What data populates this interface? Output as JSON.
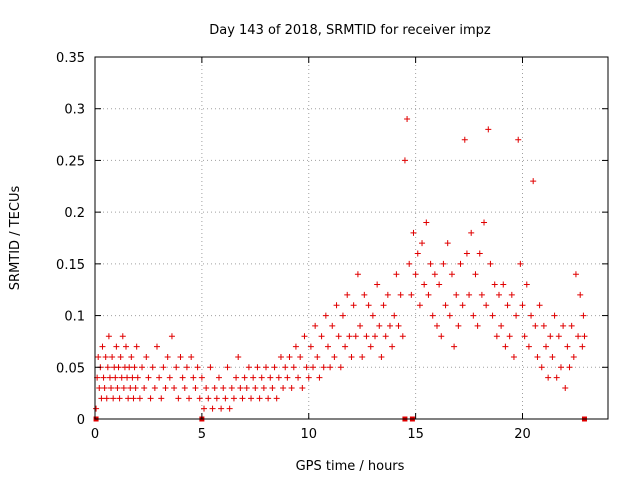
{
  "chart_data": {
    "type": "scatter",
    "title": "Day 143 of 2018, SRMTID for receiver impz",
    "xlabel": "GPS time / hours",
    "ylabel": "SRMTID / TECUs",
    "xlim": [
      0,
      24
    ],
    "ylim": [
      0,
      0.35
    ],
    "xticks": [
      0,
      5,
      10,
      15,
      20
    ],
    "xtick_labels": [
      "0",
      "5",
      "10",
      "15",
      "20"
    ],
    "yticks": [
      0,
      0.05,
      0.1,
      0.15,
      0.2,
      0.25,
      0.3,
      0.35
    ],
    "ytick_labels": [
      "0",
      "0.05",
      "0.1",
      "0.15",
      "0.2",
      "0.25",
      "0.3",
      "0.35"
    ],
    "grid": true,
    "marker": "plus",
    "color": "#e00000",
    "series": [
      {
        "name": "SRMTID",
        "points": [
          [
            0.05,
            0.01
          ],
          [
            0.1,
            0.04
          ],
          [
            0.15,
            0.06
          ],
          [
            0.2,
            0.03
          ],
          [
            0.25,
            0.05
          ],
          [
            0.3,
            0.02
          ],
          [
            0.35,
            0.07
          ],
          [
            0.4,
            0.04
          ],
          [
            0.45,
            0.03
          ],
          [
            0.5,
            0.06
          ],
          [
            0.55,
            0.02
          ],
          [
            0.6,
            0.05
          ],
          [
            0.65,
            0.08
          ],
          [
            0.7,
            0.04
          ],
          [
            0.75,
            0.03
          ],
          [
            0.8,
            0.06
          ],
          [
            0.85,
            0.02
          ],
          [
            0.9,
            0.05
          ],
          [
            0.95,
            0.04
          ],
          [
            1.0,
            0.07
          ],
          [
            1.05,
            0.03
          ],
          [
            1.1,
            0.05
          ],
          [
            1.15,
            0.02
          ],
          [
            1.2,
            0.06
          ],
          [
            1.25,
            0.04
          ],
          [
            1.3,
            0.08
          ],
          [
            1.35,
            0.03
          ],
          [
            1.4,
            0.05
          ],
          [
            1.45,
            0.07
          ],
          [
            1.5,
            0.04
          ],
          [
            1.55,
            0.02
          ],
          [
            1.6,
            0.05
          ],
          [
            1.65,
            0.03
          ],
          [
            1.7,
            0.06
          ],
          [
            1.75,
            0.04
          ],
          [
            1.8,
            0.02
          ],
          [
            1.85,
            0.05
          ],
          [
            1.9,
            0.03
          ],
          [
            1.95,
            0.07
          ],
          [
            2.0,
            0.04
          ],
          [
            2.1,
            0.02
          ],
          [
            2.2,
            0.05
          ],
          [
            2.3,
            0.03
          ],
          [
            2.4,
            0.06
          ],
          [
            2.5,
            0.04
          ],
          [
            2.6,
            0.02
          ],
          [
            2.7,
            0.05
          ],
          [
            2.8,
            0.03
          ],
          [
            2.9,
            0.07
          ],
          [
            3.0,
            0.04
          ],
          [
            3.1,
            0.02
          ],
          [
            3.2,
            0.05
          ],
          [
            3.3,
            0.03
          ],
          [
            3.4,
            0.06
          ],
          [
            3.5,
            0.04
          ],
          [
            3.6,
            0.08
          ],
          [
            3.7,
            0.03
          ],
          [
            3.8,
            0.05
          ],
          [
            3.9,
            0.02
          ],
          [
            4.0,
            0.06
          ],
          [
            4.1,
            0.04
          ],
          [
            4.2,
            0.03
          ],
          [
            4.3,
            0.05
          ],
          [
            4.4,
            0.02
          ],
          [
            4.5,
            0.06
          ],
          [
            4.6,
            0.04
          ],
          [
            4.7,
            0.03
          ],
          [
            4.8,
            0.05
          ],
          [
            4.9,
            0.02
          ],
          [
            5.0,
            0.04
          ],
          [
            5.1,
            0.01
          ],
          [
            5.2,
            0.03
          ],
          [
            5.3,
            0.02
          ],
          [
            5.4,
            0.05
          ],
          [
            5.5,
            0.01
          ],
          [
            5.6,
            0.03
          ],
          [
            5.7,
            0.02
          ],
          [
            5.8,
            0.04
          ],
          [
            5.9,
            0.01
          ],
          [
            6.0,
            0.03
          ],
          [
            6.1,
            0.02
          ],
          [
            6.2,
            0.05
          ],
          [
            6.3,
            0.01
          ],
          [
            6.4,
            0.03
          ],
          [
            6.5,
            0.02
          ],
          [
            6.6,
            0.04
          ],
          [
            6.7,
            0.06
          ],
          [
            6.8,
            0.03
          ],
          [
            6.9,
            0.02
          ],
          [
            7.0,
            0.04
          ],
          [
            7.1,
            0.03
          ],
          [
            7.2,
            0.05
          ],
          [
            7.3,
            0.02
          ],
          [
            7.4,
            0.04
          ],
          [
            7.5,
            0.03
          ],
          [
            7.6,
            0.05
          ],
          [
            7.7,
            0.02
          ],
          [
            7.8,
            0.04
          ],
          [
            7.9,
            0.03
          ],
          [
            8.0,
            0.05
          ],
          [
            8.1,
            0.02
          ],
          [
            8.2,
            0.04
          ],
          [
            8.3,
            0.03
          ],
          [
            8.4,
            0.05
          ],
          [
            8.5,
            0.02
          ],
          [
            8.6,
            0.04
          ],
          [
            8.7,
            0.06
          ],
          [
            8.8,
            0.03
          ],
          [
            8.9,
            0.05
          ],
          [
            9.0,
            0.04
          ],
          [
            9.1,
            0.06
          ],
          [
            9.2,
            0.03
          ],
          [
            9.3,
            0.05
          ],
          [
            9.4,
            0.07
          ],
          [
            9.5,
            0.04
          ],
          [
            9.6,
            0.06
          ],
          [
            9.7,
            0.03
          ],
          [
            9.8,
            0.08
          ],
          [
            9.9,
            0.05
          ],
          [
            10.0,
            0.04
          ],
          [
            10.1,
            0.07
          ],
          [
            10.2,
            0.05
          ],
          [
            10.3,
            0.09
          ],
          [
            10.4,
            0.06
          ],
          [
            10.5,
            0.04
          ],
          [
            10.6,
            0.08
          ],
          [
            10.7,
            0.05
          ],
          [
            10.8,
            0.1
          ],
          [
            10.9,
            0.07
          ],
          [
            11.0,
            0.05
          ],
          [
            11.1,
            0.09
          ],
          [
            11.2,
            0.06
          ],
          [
            11.3,
            0.11
          ],
          [
            11.4,
            0.08
          ],
          [
            11.5,
            0.05
          ],
          [
            11.6,
            0.1
          ],
          [
            11.7,
            0.07
          ],
          [
            11.8,
            0.12
          ],
          [
            11.9,
            0.08
          ],
          [
            12.0,
            0.06
          ],
          [
            12.1,
            0.11
          ],
          [
            12.2,
            0.08
          ],
          [
            12.3,
            0.14
          ],
          [
            12.4,
            0.09
          ],
          [
            12.5,
            0.06
          ],
          [
            12.6,
            0.12
          ],
          [
            12.7,
            0.08
          ],
          [
            12.8,
            0.11
          ],
          [
            12.9,
            0.07
          ],
          [
            13.0,
            0.1
          ],
          [
            13.1,
            0.08
          ],
          [
            13.2,
            0.13
          ],
          [
            13.3,
            0.09
          ],
          [
            13.4,
            0.06
          ],
          [
            13.5,
            0.11
          ],
          [
            13.6,
            0.08
          ],
          [
            13.7,
            0.12
          ],
          [
            13.8,
            0.09
          ],
          [
            13.9,
            0.07
          ],
          [
            14.0,
            0.1
          ],
          [
            14.1,
            0.14
          ],
          [
            14.2,
            0.09
          ],
          [
            14.3,
            0.12
          ],
          [
            14.4,
            0.08
          ],
          [
            14.5,
            0.25
          ],
          [
            14.6,
            0.29
          ],
          [
            14.7,
            0.15
          ],
          [
            14.8,
            0.12
          ],
          [
            14.9,
            0.18
          ],
          [
            15.0,
            0.14
          ],
          [
            15.1,
            0.16
          ],
          [
            15.2,
            0.11
          ],
          [
            15.3,
            0.17
          ],
          [
            15.4,
            0.13
          ],
          [
            15.5,
            0.19
          ],
          [
            15.6,
            0.12
          ],
          [
            15.7,
            0.15
          ],
          [
            15.8,
            0.1
          ],
          [
            15.9,
            0.14
          ],
          [
            16.0,
            0.09
          ],
          [
            16.1,
            0.13
          ],
          [
            16.2,
            0.08
          ],
          [
            16.3,
            0.15
          ],
          [
            16.4,
            0.11
          ],
          [
            16.5,
            0.17
          ],
          [
            16.6,
            0.1
          ],
          [
            16.7,
            0.14
          ],
          [
            16.8,
            0.07
          ],
          [
            16.9,
            0.12
          ],
          [
            17.0,
            0.09
          ],
          [
            17.1,
            0.15
          ],
          [
            17.2,
            0.11
          ],
          [
            17.3,
            0.27
          ],
          [
            17.4,
            0.16
          ],
          [
            17.5,
            0.12
          ],
          [
            17.6,
            0.18
          ],
          [
            17.7,
            0.1
          ],
          [
            17.8,
            0.14
          ],
          [
            17.9,
            0.09
          ],
          [
            18.0,
            0.16
          ],
          [
            18.1,
            0.12
          ],
          [
            18.2,
            0.19
          ],
          [
            18.3,
            0.11
          ],
          [
            18.4,
            0.28
          ],
          [
            18.5,
            0.15
          ],
          [
            18.6,
            0.1
          ],
          [
            18.7,
            0.13
          ],
          [
            18.8,
            0.08
          ],
          [
            18.9,
            0.12
          ],
          [
            19.0,
            0.09
          ],
          [
            19.1,
            0.13
          ],
          [
            19.2,
            0.07
          ],
          [
            19.3,
            0.11
          ],
          [
            19.4,
            0.08
          ],
          [
            19.5,
            0.12
          ],
          [
            19.6,
            0.06
          ],
          [
            19.7,
            0.1
          ],
          [
            19.8,
            0.27
          ],
          [
            19.9,
            0.15
          ],
          [
            20.0,
            0.11
          ],
          [
            20.1,
            0.08
          ],
          [
            20.2,
            0.13
          ],
          [
            20.3,
            0.07
          ],
          [
            20.4,
            0.1
          ],
          [
            20.5,
            0.23
          ],
          [
            20.6,
            0.09
          ],
          [
            20.7,
            0.06
          ],
          [
            20.8,
            0.11
          ],
          [
            20.9,
            0.05
          ],
          [
            21.0,
            0.09
          ],
          [
            21.1,
            0.07
          ],
          [
            21.2,
            0.04
          ],
          [
            21.3,
            0.08
          ],
          [
            21.4,
            0.06
          ],
          [
            21.5,
            0.1
          ],
          [
            21.6,
            0.04
          ],
          [
            21.7,
            0.08
          ],
          [
            21.8,
            0.05
          ],
          [
            21.9,
            0.09
          ],
          [
            22.0,
            0.03
          ],
          [
            22.1,
            0.07
          ],
          [
            22.2,
            0.05
          ],
          [
            22.3,
            0.09
          ],
          [
            22.4,
            0.06
          ],
          [
            22.5,
            0.14
          ],
          [
            22.6,
            0.08
          ],
          [
            22.7,
            0.12
          ],
          [
            22.8,
            0.07
          ],
          [
            22.85,
            0.1
          ],
          [
            22.9,
            0.08
          ]
        ]
      }
    ],
    "baseline_markers_x": [
      0.05,
      14.5,
      14.85,
      5.0,
      22.9
    ]
  }
}
